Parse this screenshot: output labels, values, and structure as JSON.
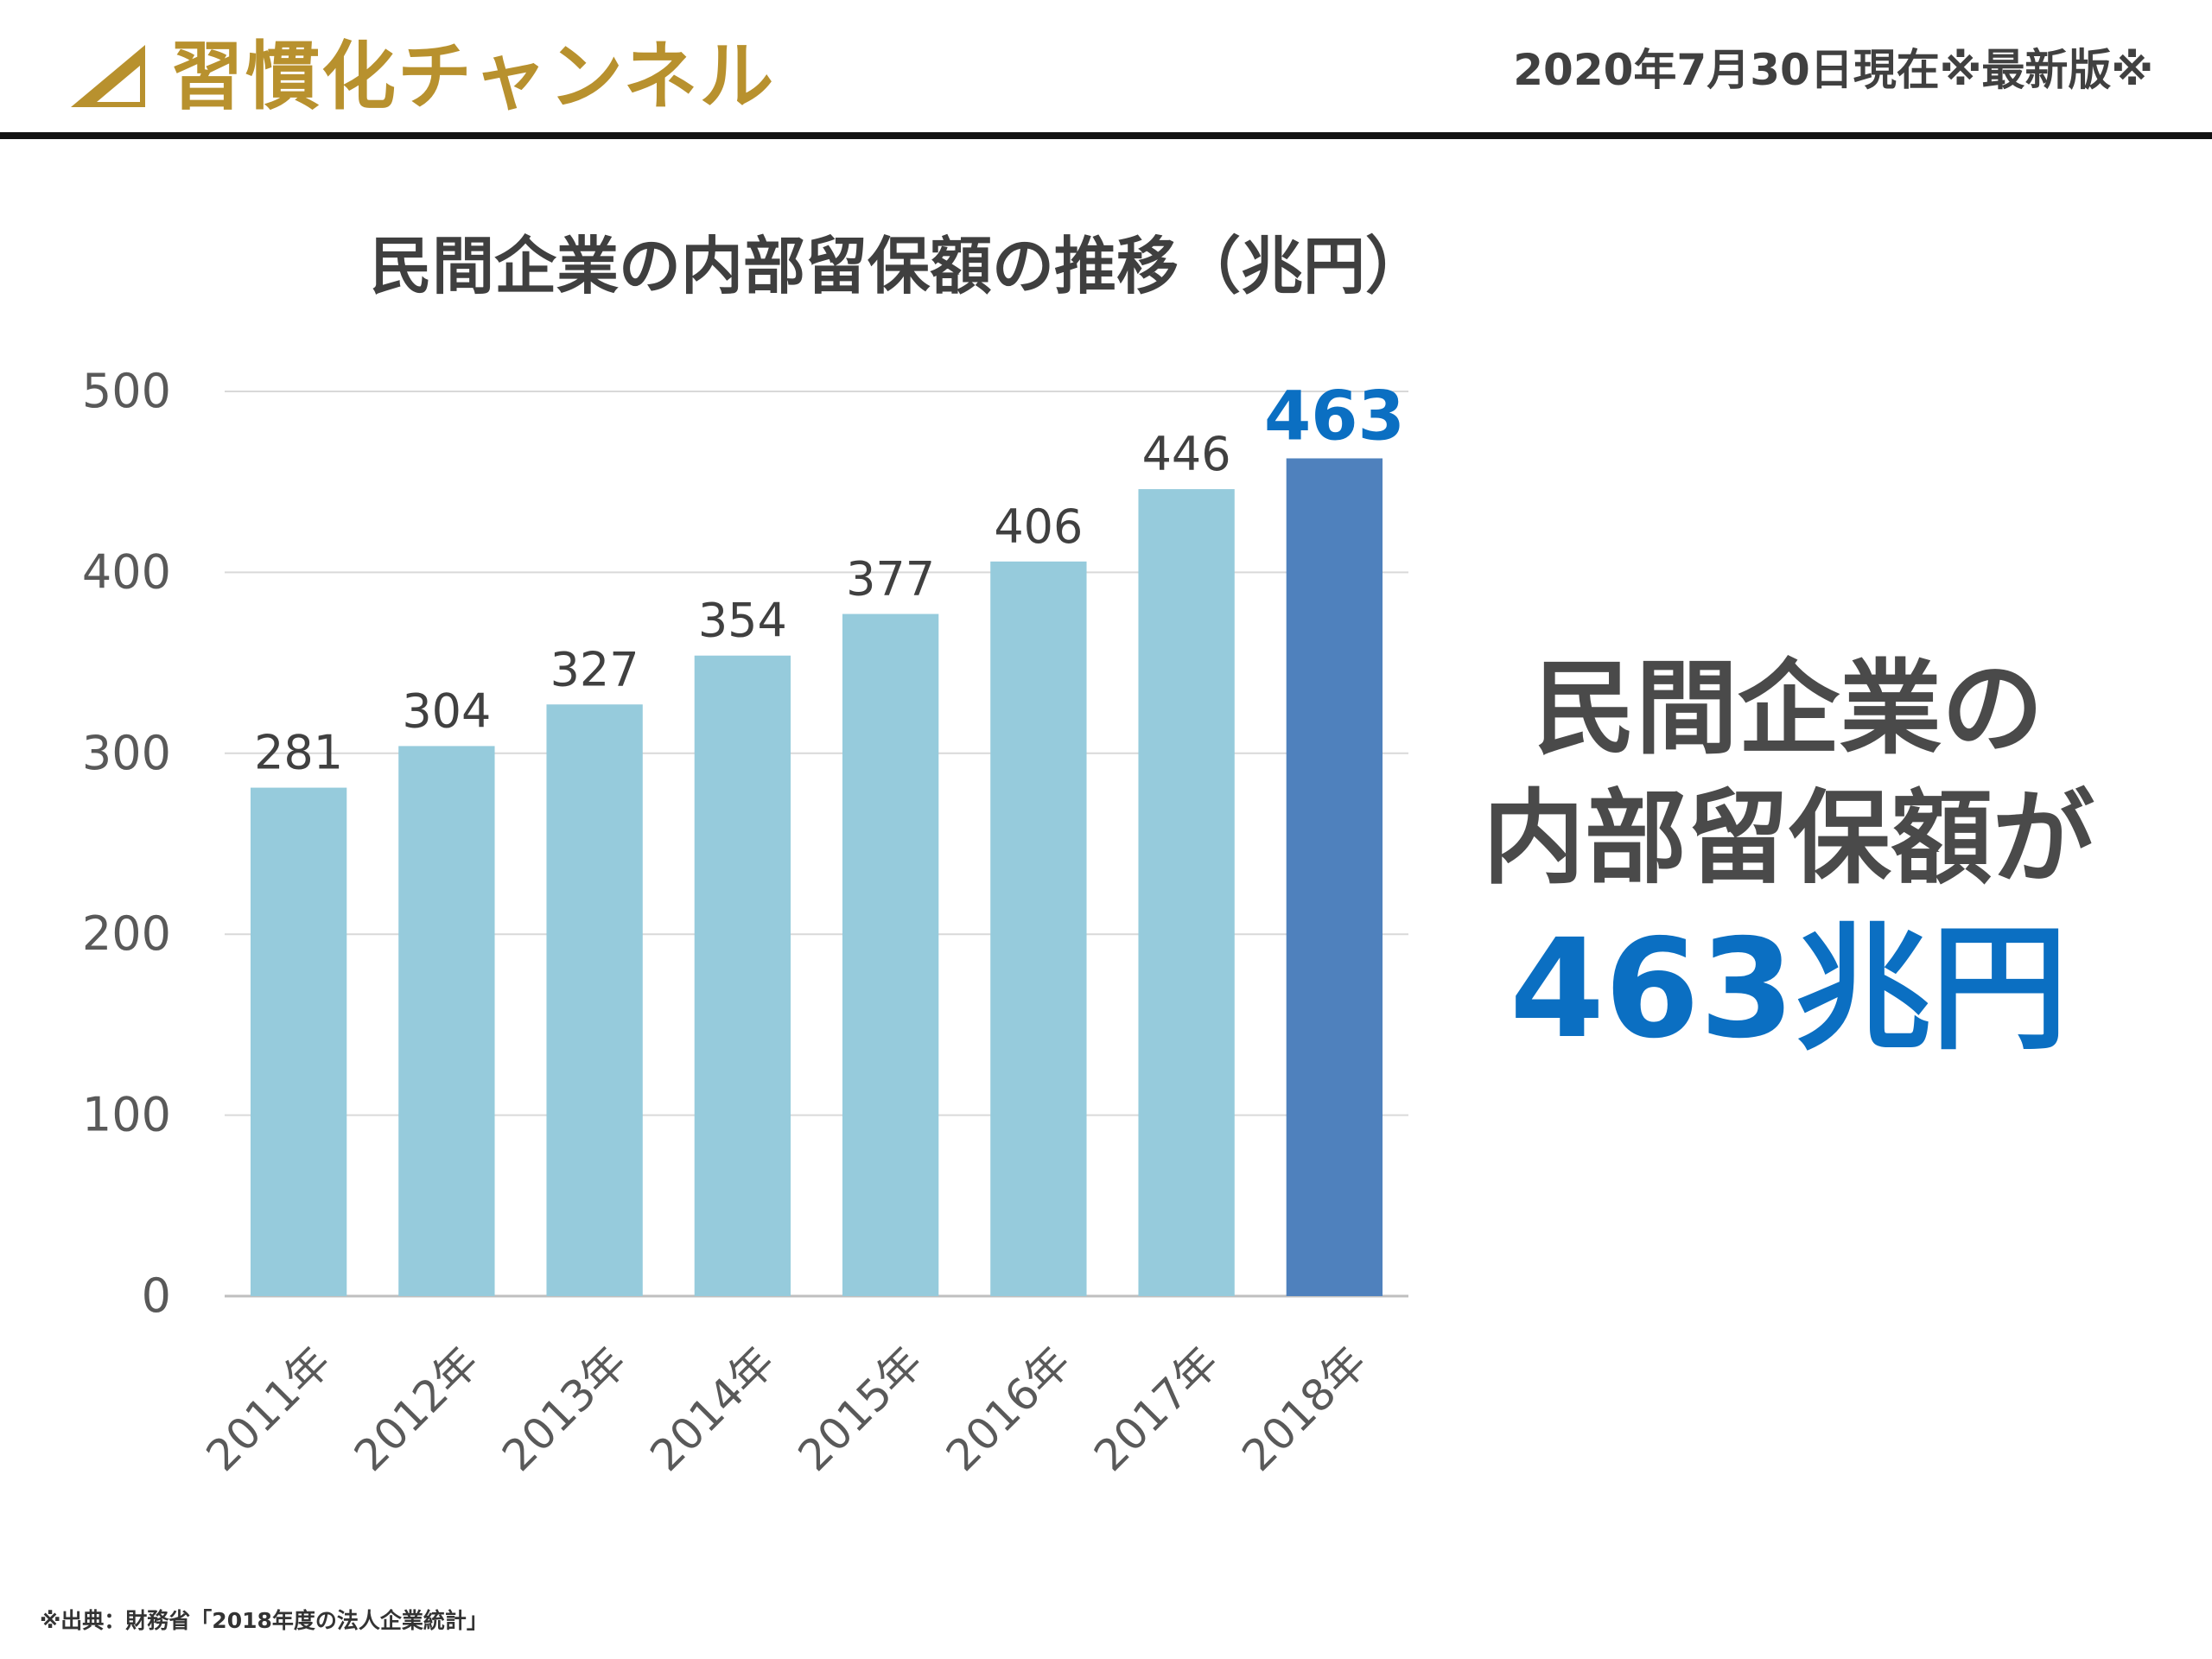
{
  "header": {
    "brand_name": "習慣化チャンネル",
    "date_note": "2020年7月30日現在※最新版※",
    "brand_color": "#b8912e"
  },
  "chart_data": {
    "type": "bar",
    "title": "民間企業の内部留保額の推移（兆円）",
    "categories": [
      "2011年",
      "2012年",
      "2013年",
      "2014年",
      "2015年",
      "2016年",
      "2017年",
      "2018年"
    ],
    "values": [
      281,
      304,
      327,
      354,
      377,
      406,
      446,
      463
    ],
    "value_labels": [
      "281",
      "304",
      "327",
      "354",
      "377",
      "406",
      "446",
      "463"
    ],
    "y_ticks": [
      "0",
      "100",
      "200",
      "300",
      "400",
      "500"
    ],
    "ylim": [
      0,
      500
    ],
    "grid": true,
    "highlight_index": 7,
    "bar_color": "#96cbdc",
    "highlight_color": "#4f81bd",
    "highlight_label_color": "#0b6fc2"
  },
  "callout": {
    "line1": "民間企業の",
    "line2": "内部留保額が",
    "value": "463兆円",
    "value_color": "#0b6fc2"
  },
  "footer": {
    "source": "※出典：財務省「2018年度の法人企業統計」"
  }
}
